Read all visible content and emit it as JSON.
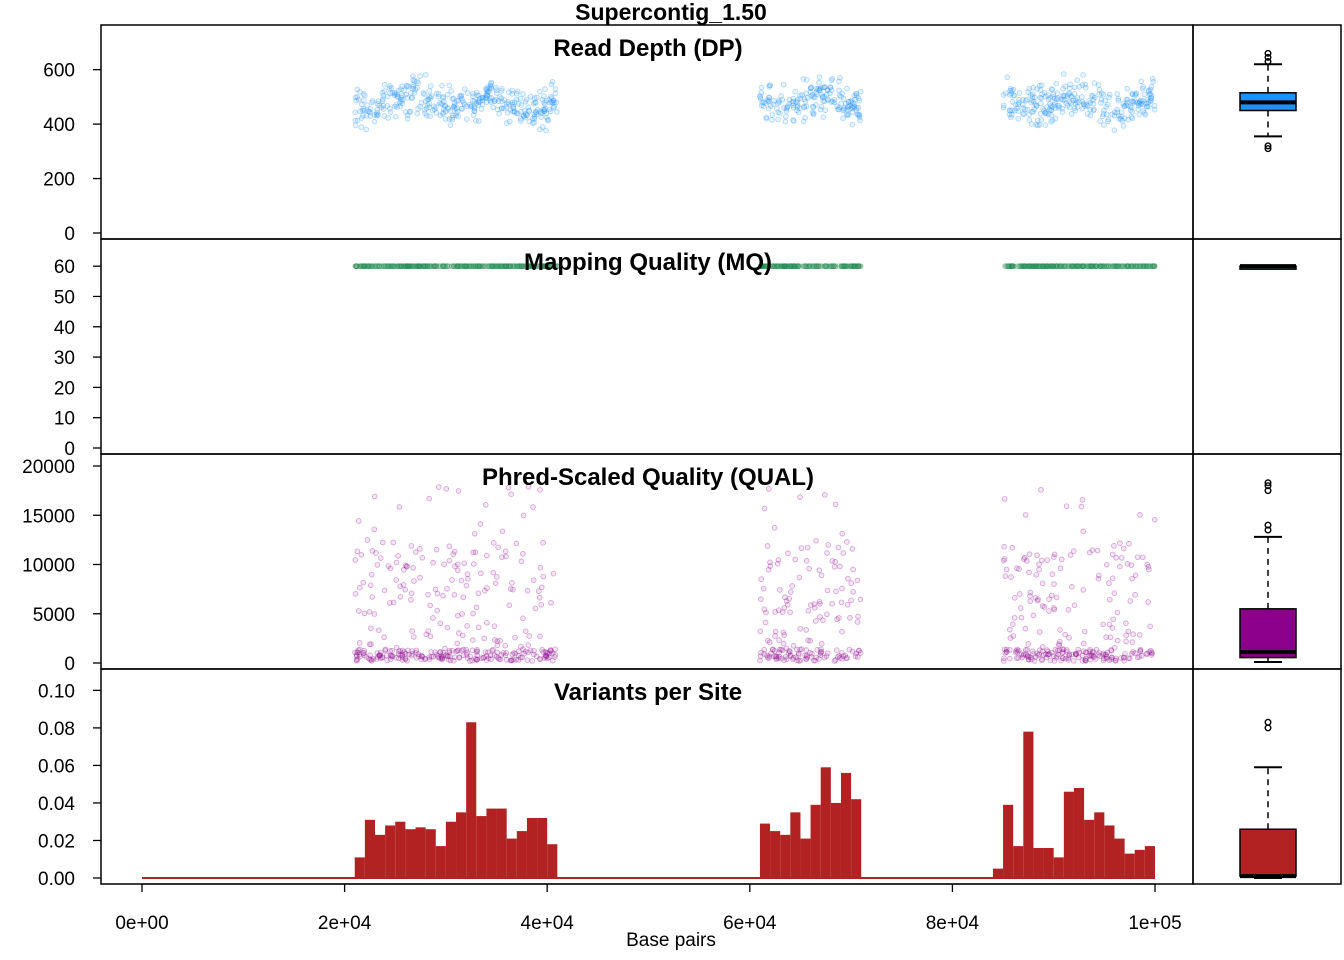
{
  "title": "Supercontig_1.50",
  "xlabel": "Base pairs",
  "x_ticks": [
    "0e+00",
    "2e+04",
    "4e+04",
    "6e+04",
    "8e+04",
    "1e+05"
  ],
  "chart_data": [
    {
      "type": "scatter",
      "title": "Read Depth (DP)",
      "color": "#1E90FF",
      "xlim": [
        0,
        100000
      ],
      "ylim": [
        0,
        720
      ],
      "y_ticks": [
        0,
        200,
        400,
        600
      ],
      "series": [
        {
          "regions": [
            [
              21000,
              41000
            ],
            [
              61000,
              71000
            ],
            [
              85000,
              100000
            ]
          ],
          "mean": 480,
          "spread": 70,
          "min": 310,
          "max": 660
        }
      ],
      "boxplot": {
        "min": 355,
        "q1": 450,
        "median": 480,
        "q3": 515,
        "max": 620,
        "outliers": [
          310,
          320,
          630,
          645,
          660
        ]
      }
    },
    {
      "type": "scatter",
      "title": "Mapping Quality (MQ)",
      "color": "#2E8B57",
      "xlim": [
        0,
        100000
      ],
      "ylim": [
        0,
        65
      ],
      "y_ticks": [
        0,
        10,
        20,
        30,
        40,
        50,
        60
      ],
      "series": [
        {
          "regions": [
            [
              21000,
              41000
            ],
            [
              61000,
              71000
            ],
            [
              85000,
              100000
            ]
          ],
          "mean": 60,
          "spread": 0,
          "min": 60,
          "max": 60
        }
      ],
      "boxplot": {
        "min": 60,
        "q1": 60,
        "median": 60,
        "q3": 60,
        "max": 60,
        "outliers": []
      }
    },
    {
      "type": "scatter",
      "title": "Phred-Scaled Quality (QUAL)",
      "color": "#8B008B",
      "xlim": [
        0,
        100000
      ],
      "ylim": [
        0,
        20000
      ],
      "y_ticks": [
        0,
        5000,
        10000,
        15000,
        20000
      ],
      "series": [
        {
          "regions": [
            [
              21000,
              41000
            ],
            [
              61000,
              71000
            ],
            [
              85000,
              100000
            ]
          ],
          "mean": 3500,
          "spread": 4000,
          "min": 0,
          "max": 18200
        }
      ],
      "boxplot": {
        "min": 100,
        "q1": 550,
        "median": 1100,
        "q3": 5500,
        "max": 12800,
        "outliers": [
          13500,
          14000,
          17500,
          18000,
          18300
        ]
      }
    },
    {
      "type": "bar",
      "title": "Variants per Site",
      "color": "#B22222",
      "xlim": [
        0,
        100000
      ],
      "ylim": [
        0,
        0.105
      ],
      "y_ticks": [
        "0.00",
        "0.02",
        "0.04",
        "0.06",
        "0.08",
        "0.10"
      ],
      "bin_width": 1000,
      "x": [
        0,
        21000,
        22000,
        23000,
        24000,
        25000,
        26000,
        27000,
        28000,
        29000,
        30000,
        31000,
        32000,
        33000,
        34000,
        35000,
        36000,
        37000,
        38000,
        39000,
        40000,
        41000,
        61000,
        62000,
        63000,
        64000,
        65000,
        66000,
        67000,
        68000,
        69000,
        70000,
        71000,
        84000,
        85000,
        86000,
        87000,
        88000,
        89000,
        90000,
        91000,
        92000,
        93000,
        94000,
        95000,
        96000,
        97000,
        98000,
        99000,
        100000
      ],
      "values": [
        0,
        0.011,
        0.031,
        0.023,
        0.028,
        0.03,
        0.026,
        0.027,
        0.026,
        0.017,
        0.03,
        0.035,
        0.083,
        0.033,
        0.037,
        0.037,
        0.021,
        0.025,
        0.032,
        0.032,
        0.018,
        0,
        0.029,
        0.025,
        0.023,
        0.035,
        0.021,
        0.039,
        0.059,
        0.04,
        0.056,
        0.042,
        0,
        0.005,
        0.039,
        0.017,
        0.078,
        0.016,
        0.016,
        0.011,
        0.046,
        0.048,
        0.031,
        0.035,
        0.028,
        0.021,
        0.013,
        0.015,
        0.017,
        0
      ],
      "boxplot": {
        "min": 0,
        "q1": 0.001,
        "median": 0.001,
        "q3": 0.026,
        "max": 0.059,
        "outliers": [
          0.08,
          0.083
        ]
      }
    }
  ]
}
